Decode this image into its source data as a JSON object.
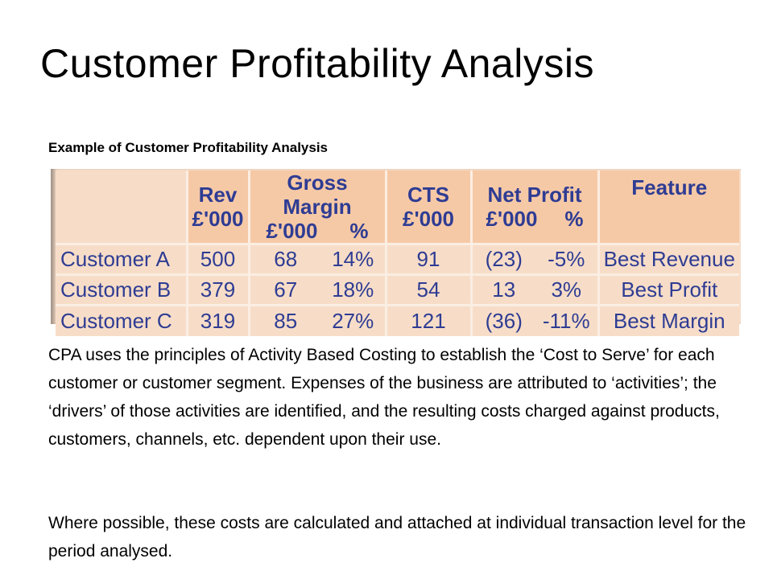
{
  "slide": {
    "title": "Customer Profitability Analysis",
    "subtitle": "Example of Customer Profitability Analysis",
    "paragraph1": "CPA uses the principles of Activity Based Costing to establish the ‘Cost to Serve’ for each customer or customer segment. Expenses of the business are attributed to ‘activities’; the ‘drivers’ of those activities are identified, and the resulting costs charged against products, customers, channels, etc. dependent upon their use.",
    "paragraph2": "Where possible, these costs are calculated and attached at individual transaction level for the period analysed."
  },
  "table": {
    "headers": {
      "rev_top": "Rev",
      "rev_bottom": "£'000",
      "gm_top": "Gross Margin",
      "gm_val": "£'000",
      "gm_pct": "%",
      "cts_top": "CTS",
      "cts_bottom": "£'000",
      "np_top": "Net Profit",
      "np_val": "£'000",
      "np_pct": "%",
      "feature": "Feature"
    },
    "rows": [
      {
        "name": "Customer A",
        "rev": "500",
        "gm": "68",
        "gm_pct": "14%",
        "cts": "91",
        "np": "(23)",
        "np_pct": "-5%",
        "feature": "Best Revenue"
      },
      {
        "name": "Customer B",
        "rev": "379",
        "gm": "67",
        "gm_pct": "18%",
        "cts": "54",
        "np": "13",
        "np_pct": "3%",
        "feature": "Best Profit"
      },
      {
        "name": "Customer C",
        "rev": "319",
        "gm": "85",
        "gm_pct": "27%",
        "cts": "121",
        "np": "(36)",
        "np_pct": "-11%",
        "feature": "Best Margin"
      }
    ]
  },
  "colors": {
    "table_text": "#2e3c93",
    "header_bg": "#f6c9a6",
    "row_bg": "#f7ddc8"
  }
}
